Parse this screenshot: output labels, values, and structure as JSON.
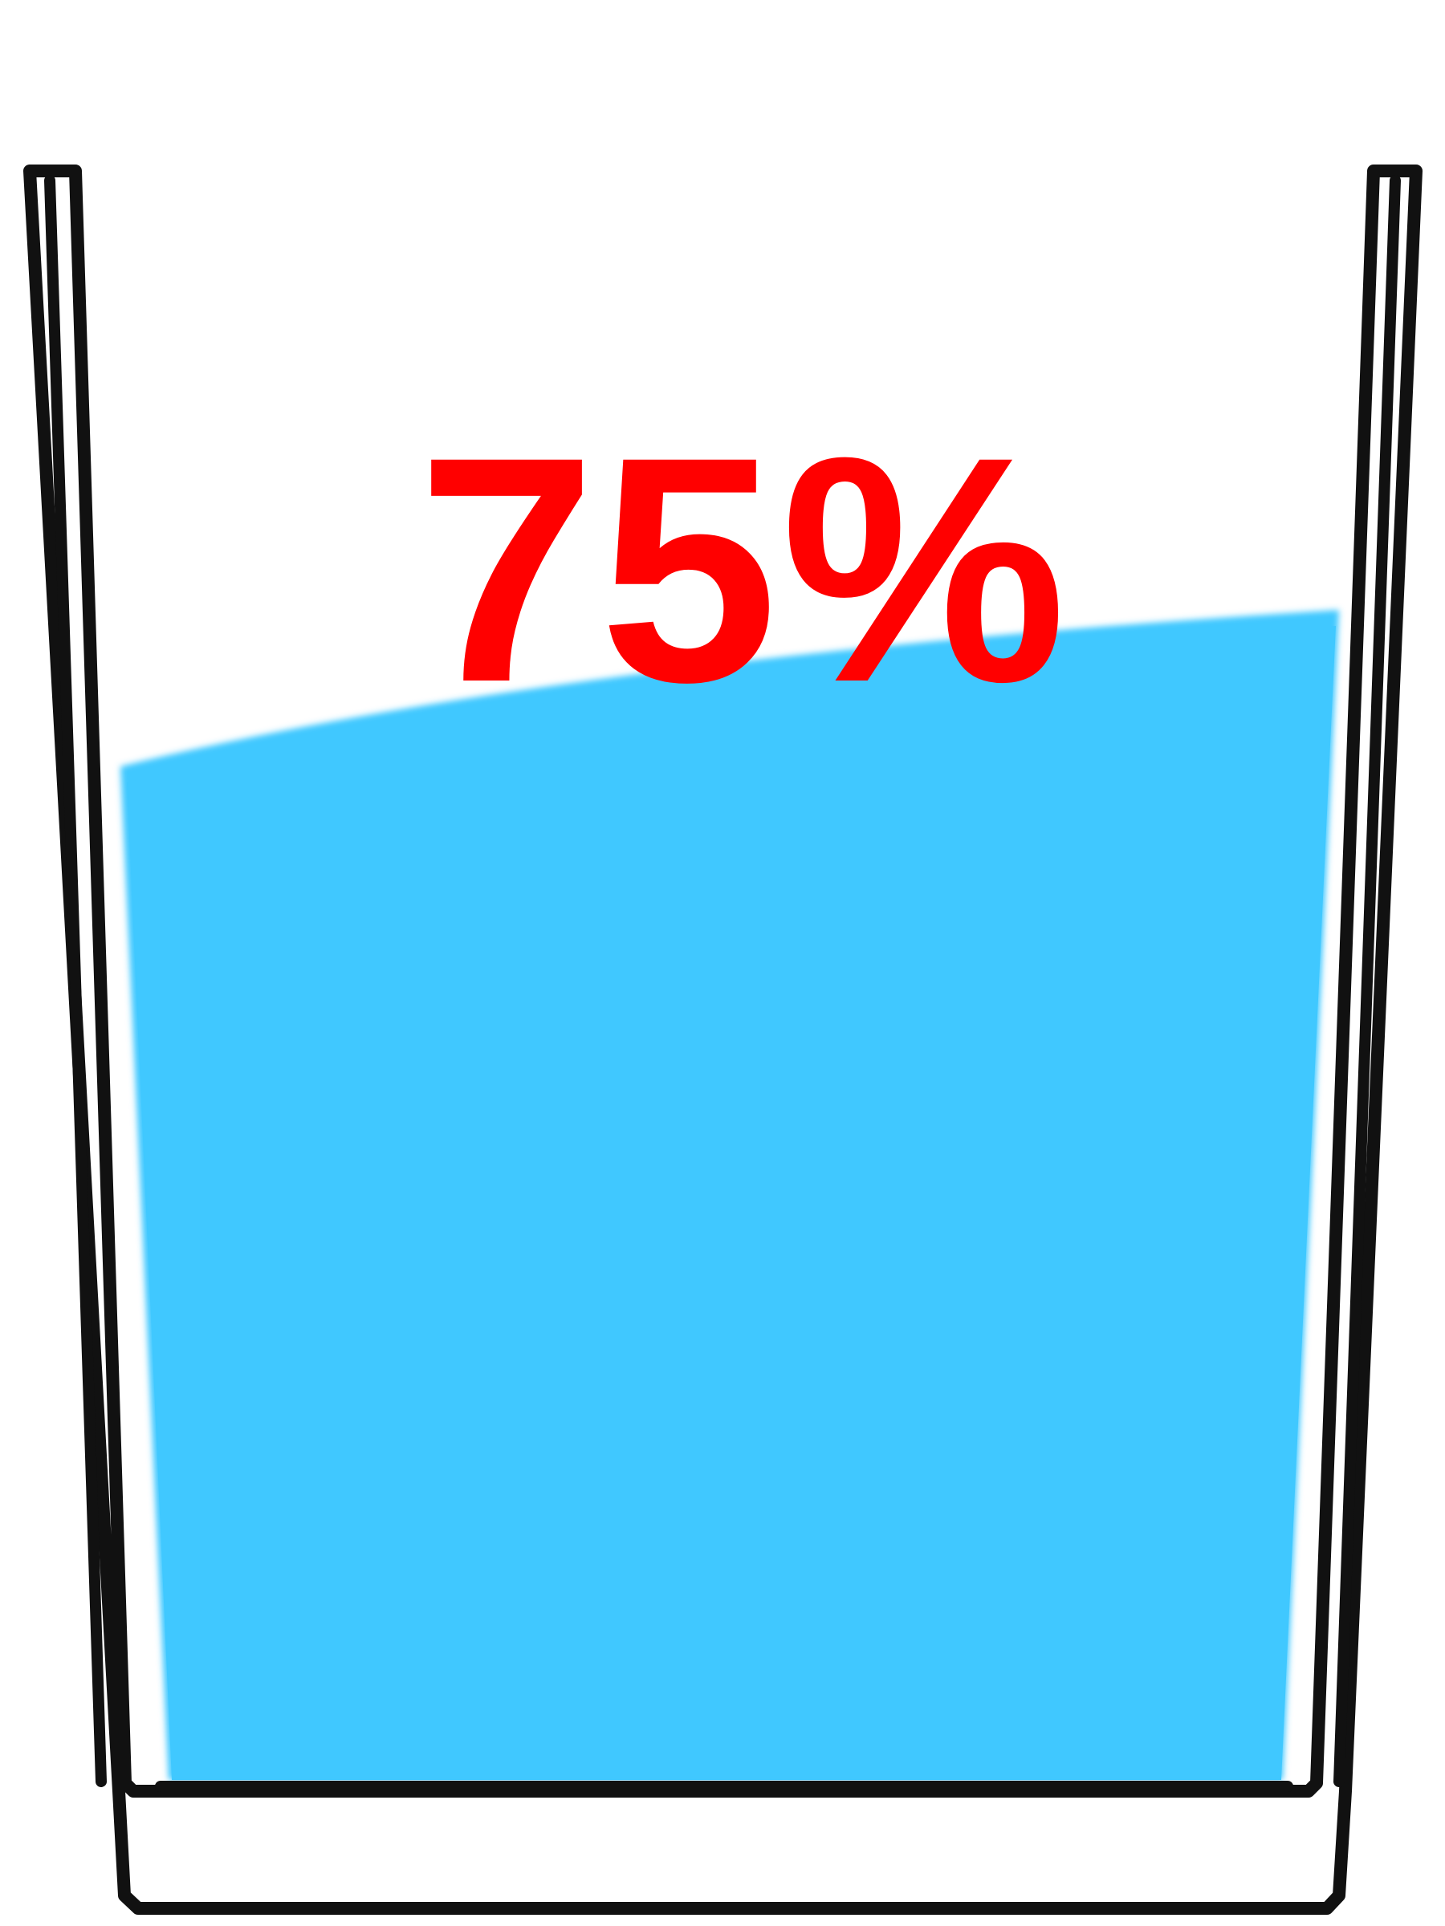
{
  "glass": {
    "fill_fraction": 0.75,
    "label": "75%",
    "colors": {
      "water": "#40c8ff",
      "outline": "#111111",
      "label": "#ff0000",
      "background": "#ffffff"
    }
  }
}
